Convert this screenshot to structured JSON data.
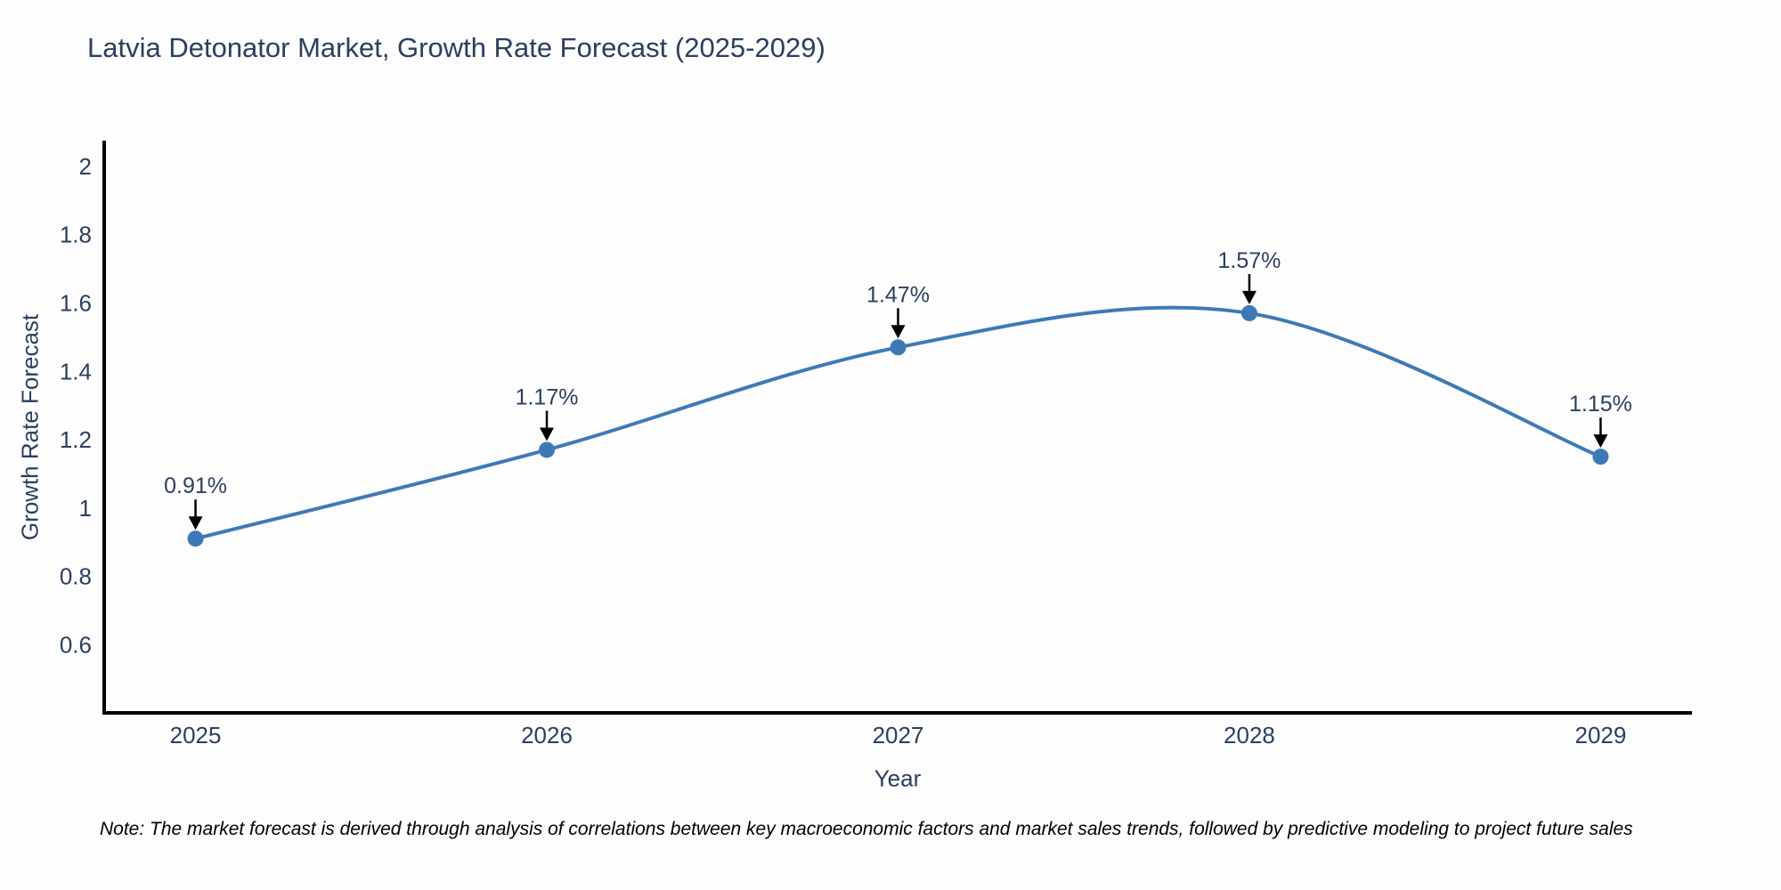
{
  "page": {
    "background": "#fdfdfd"
  },
  "chart_data": {
    "type": "line",
    "title": "Latvia Detonator Market, Growth Rate Forecast (2025-2029)",
    "xlabel": "Year",
    "ylabel": "Growth Rate Forecast",
    "x": [
      2025,
      2026,
      2027,
      2028,
      2029
    ],
    "series": [
      {
        "name": "Growth Rate Forecast",
        "values": [
          0.91,
          1.17,
          1.47,
          1.57,
          1.15
        ],
        "point_labels": [
          "0.91%",
          "1.17%",
          "1.47%",
          "1.57%",
          "1.15%"
        ]
      }
    ],
    "xtick_labels": [
      "2025",
      "2026",
      "2027",
      "2028",
      "2029"
    ],
    "ytick_values": [
      0.6,
      0.8,
      1,
      1.2,
      1.4,
      1.6,
      1.8,
      2
    ],
    "ytick_labels": [
      "0.6",
      "0.8",
      "1",
      "1.2",
      "1.4",
      "1.6",
      "1.8",
      "2"
    ],
    "xlim": [
      2024.74,
      2029.26
    ],
    "ylim": [
      0.4,
      2.07
    ],
    "grid": false,
    "legend_position": "none",
    "line_shape": "spline",
    "colors": {
      "line": "#3d7ab5",
      "marker": "#3d7ab5",
      "axis": "#000000",
      "text": "#2a3f5f",
      "annotation_arrow": "#000000"
    }
  },
  "note": {
    "text": "Note: The market forecast is derived through analysis of correlations between key macroeconomic factors and market sales trends, followed by predictive modeling to project future sales"
  }
}
